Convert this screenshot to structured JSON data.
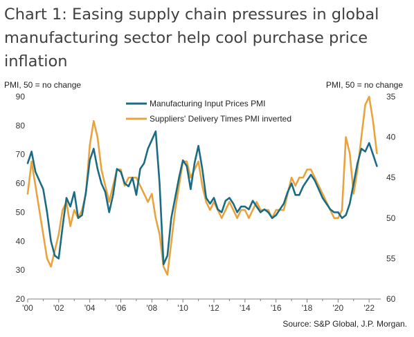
{
  "chart_data": {
    "type": "line",
    "title": "Chart 1: Easing supply chain pressures in global manufacturing sector help cool purchase price inflation",
    "ylabel_left": "PMI, 50 = no change",
    "ylabel_right": "PMI, 50 = no change",
    "source": "Source: S&P Global, J.P. Morgan.",
    "x_ticks": [
      "'00",
      "'02",
      "'04",
      "'06",
      "'08",
      "'10",
      "'12",
      "'14",
      "'16",
      "'18",
      "'20",
      "'22"
    ],
    "y_left_ticks": [
      "90",
      "80",
      "70",
      "60",
      "50",
      "40",
      "30",
      "20"
    ],
    "y_right_ticks": [
      "35",
      "40",
      "45",
      "50",
      "55",
      "60"
    ],
    "ylim_left": [
      20,
      90
    ],
    "ylim_right_inverted": [
      35,
      60
    ],
    "legend_position": "top-center",
    "grid": false,
    "series": [
      {
        "name": "Manufacturing Input Prices PMI",
        "axis": "left",
        "color": "#1a6b84",
        "x": [
          2000.0,
          2000.25,
          2000.5,
          2000.75,
          2001.0,
          2001.25,
          2001.5,
          2001.75,
          2002.0,
          2002.25,
          2002.5,
          2002.75,
          2003.0,
          2003.25,
          2003.5,
          2003.75,
          2004.0,
          2004.25,
          2004.5,
          2004.75,
          2005.0,
          2005.25,
          2005.5,
          2005.75,
          2006.0,
          2006.25,
          2006.5,
          2006.75,
          2007.0,
          2007.25,
          2007.5,
          2007.75,
          2008.0,
          2008.25,
          2008.5,
          2008.75,
          2009.0,
          2009.25,
          2009.5,
          2009.75,
          2010.0,
          2010.25,
          2010.5,
          2010.75,
          2011.0,
          2011.25,
          2011.5,
          2011.75,
          2012.0,
          2012.25,
          2012.5,
          2012.75,
          2013.0,
          2013.25,
          2013.5,
          2013.75,
          2014.0,
          2014.25,
          2014.5,
          2014.75,
          2015.0,
          2015.25,
          2015.5,
          2015.75,
          2016.0,
          2016.25,
          2016.5,
          2016.75,
          2017.0,
          2017.25,
          2017.5,
          2017.75,
          2018.0,
          2018.25,
          2018.5,
          2018.75,
          2019.0,
          2019.25,
          2019.5,
          2019.75,
          2020.0,
          2020.25,
          2020.5,
          2020.75,
          2021.0,
          2021.25,
          2021.5,
          2021.75,
          2022.0,
          2022.25,
          2022.5
        ],
        "values": [
          67,
          71,
          64,
          61,
          58,
          50,
          40,
          35,
          34,
          45,
          55,
          52,
          57,
          48,
          49,
          57,
          68,
          72,
          65,
          60,
          57,
          50,
          56,
          65,
          64,
          60,
          59,
          62,
          56,
          65,
          67,
          72,
          75,
          78,
          60,
          32,
          35,
          48,
          55,
          62,
          68,
          66,
          58,
          67,
          73,
          65,
          55,
          53,
          55,
          51,
          50,
          54,
          55,
          53,
          50,
          52,
          52,
          51,
          54,
          52,
          50,
          51,
          50,
          48,
          49,
          51,
          53,
          57,
          60,
          56,
          56,
          59,
          61,
          63,
          61,
          58,
          55,
          53,
          51,
          50,
          50,
          48,
          49,
          53,
          60,
          67,
          72,
          71,
          74,
          70,
          66
        ]
      },
      {
        "name": "Suppliers' Delivery Times PMI inverted",
        "axis": "right",
        "color": "#e8a33d",
        "x": [
          2000.0,
          2000.25,
          2000.5,
          2000.75,
          2001.0,
          2001.25,
          2001.5,
          2001.75,
          2002.0,
          2002.25,
          2002.5,
          2002.75,
          2003.0,
          2003.25,
          2003.5,
          2003.75,
          2004.0,
          2004.25,
          2004.5,
          2004.75,
          2005.0,
          2005.25,
          2005.5,
          2005.75,
          2006.0,
          2006.25,
          2006.5,
          2006.75,
          2007.0,
          2007.25,
          2007.5,
          2007.75,
          2008.0,
          2008.25,
          2008.5,
          2008.75,
          2009.0,
          2009.25,
          2009.5,
          2009.75,
          2010.0,
          2010.25,
          2010.5,
          2010.75,
          2011.0,
          2011.25,
          2011.5,
          2011.75,
          2012.0,
          2012.25,
          2012.5,
          2012.75,
          2013.0,
          2013.25,
          2013.5,
          2013.75,
          2014.0,
          2014.25,
          2014.5,
          2014.75,
          2015.0,
          2015.25,
          2015.5,
          2015.75,
          2016.0,
          2016.25,
          2016.5,
          2016.75,
          2017.0,
          2017.25,
          2017.5,
          2017.75,
          2018.0,
          2018.25,
          2018.5,
          2018.75,
          2019.0,
          2019.25,
          2019.5,
          2019.75,
          2020.0,
          2020.25,
          2020.5,
          2020.75,
          2021.0,
          2021.25,
          2021.5,
          2021.75,
          2022.0,
          2022.25,
          2022.5
        ],
        "values": [
          47,
          43,
          46,
          49,
          52,
          55,
          56,
          54,
          52,
          49,
          48,
          51,
          49,
          50,
          49,
          47,
          41,
          38,
          40,
          44,
          46,
          48,
          46,
          44,
          44,
          46,
          45,
          45,
          45,
          46,
          47,
          48,
          47,
          50,
          52,
          56,
          57,
          53,
          49,
          46,
          43,
          43,
          45,
          44,
          43,
          46,
          48,
          49,
          48,
          49,
          50,
          49,
          48,
          49,
          50,
          49,
          49,
          50,
          49,
          48,
          49,
          49,
          49,
          50,
          49,
          49,
          49,
          47,
          45,
          46,
          45,
          45,
          44,
          44,
          45,
          46,
          47,
          48,
          49,
          50,
          50,
          49,
          40,
          42,
          47,
          44,
          40,
          36,
          35,
          38,
          42
        ]
      }
    ]
  }
}
